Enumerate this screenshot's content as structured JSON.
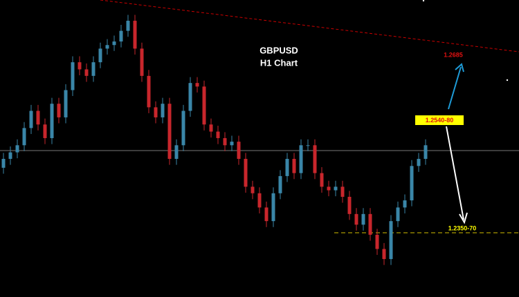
{
  "chart_data": {
    "type": "candlestick",
    "title": "GBPUSD",
    "subtitle": "H1 Chart",
    "annotations": [
      "1.2685",
      "1.2540-80",
      "1.2350-70"
    ],
    "up_color": "#3a86a8",
    "down_color": "#c8262c",
    "ylim": [
      1.2242,
      1.2743
    ],
    "open": [
      1.246,
      1.2475,
      1.2486,
      1.2498,
      1.2527,
      1.2556,
      1.2533,
      1.251,
      1.2568,
      1.2545,
      1.2591,
      1.2638,
      1.2626,
      1.2615,
      1.2638,
      1.2661,
      1.2667,
      1.2673,
      1.2691,
      1.2708,
      1.2661,
      1.2615,
      1.2562,
      1.2545,
      1.2568,
      1.2475,
      1.2498,
      1.2556,
      1.2603,
      1.2597,
      1.2533,
      1.2521,
      1.251,
      1.2498,
      1.2504,
      1.2475,
      1.2428,
      1.2417,
      1.2393,
      1.237,
      1.2417,
      1.2446,
      1.2475,
      1.2451,
      1.2498,
      1.2498,
      1.2451,
      1.2428,
      1.2422,
      1.2428,
      1.2411,
      1.2382,
      1.2364,
      1.2382,
      1.2347,
      1.2323,
      1.2306,
      1.237,
      1.2393,
      1.2405,
      1.2463,
      1.2475
    ],
    "high": [
      1.2485,
      1.2496,
      1.2508,
      1.2537,
      1.2566,
      1.2566,
      1.2543,
      1.2578,
      1.2578,
      1.2601,
      1.2648,
      1.2648,
      1.2636,
      1.2648,
      1.2671,
      1.2677,
      1.2683,
      1.2701,
      1.2718,
      1.2718,
      1.2671,
      1.2625,
      1.2572,
      1.2578,
      1.2578,
      1.2508,
      1.2566,
      1.2613,
      1.2613,
      1.2607,
      1.2543,
      1.2531,
      1.252,
      1.2514,
      1.2514,
      1.2485,
      1.2438,
      1.2427,
      1.2403,
      1.2427,
      1.2456,
      1.2485,
      1.2485,
      1.2508,
      1.2508,
      1.2508,
      1.2461,
      1.2438,
      1.2438,
      1.2438,
      1.2421,
      1.2392,
      1.2392,
      1.2392,
      1.2357,
      1.2333,
      1.238,
      1.2403,
      1.2415,
      1.2473,
      1.2485,
      1.2508
    ],
    "low": [
      1.245,
      1.2465,
      1.2476,
      1.2488,
      1.2517,
      1.2523,
      1.25,
      1.25,
      1.2535,
      1.2535,
      1.2581,
      1.2616,
      1.2605,
      1.2605,
      1.2628,
      1.2651,
      1.2657,
      1.2663,
      1.2681,
      1.2651,
      1.2605,
      1.2552,
      1.2535,
      1.2535,
      1.2465,
      1.2465,
      1.2488,
      1.2546,
      1.2587,
      1.2523,
      1.2511,
      1.25,
      1.2488,
      1.2488,
      1.2465,
      1.2418,
      1.2407,
      1.2383,
      1.236,
      1.236,
      1.2407,
      1.2436,
      1.2441,
      1.2441,
      1.2488,
      1.2441,
      1.2418,
      1.2412,
      1.2412,
      1.2401,
      1.2372,
      1.2354,
      1.2354,
      1.2337,
      1.2313,
      1.2296,
      1.2296,
      1.236,
      1.2383,
      1.2395,
      1.2453,
      1.2465
    ],
    "close": [
      1.2475,
      1.2486,
      1.2498,
      1.2527,
      1.2556,
      1.2533,
      1.251,
      1.2568,
      1.2545,
      1.2591,
      1.2638,
      1.2626,
      1.2615,
      1.2638,
      1.2661,
      1.2667,
      1.2673,
      1.2691,
      1.2708,
      1.2661,
      1.2615,
      1.2562,
      1.2545,
      1.2568,
      1.2475,
      1.2498,
      1.2556,
      1.2603,
      1.2597,
      1.2533,
      1.2521,
      1.251,
      1.2498,
      1.2504,
      1.2475,
      1.2428,
      1.2417,
      1.2393,
      1.237,
      1.2417,
      1.2446,
      1.2475,
      1.2451,
      1.2498,
      1.2498,
      1.2451,
      1.2428,
      1.2422,
      1.2428,
      1.2411,
      1.2382,
      1.2364,
      1.2382,
      1.2347,
      1.2323,
      1.2306,
      1.237,
      1.2393,
      1.2405,
      1.2463,
      1.2475,
      1.2498
    ]
  }
}
